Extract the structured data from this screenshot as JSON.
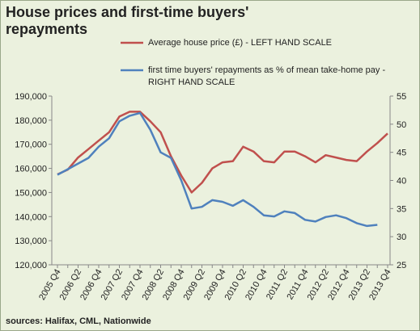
{
  "chart_data": {
    "type": "line",
    "title": "House prices and first-time buyers' repayments",
    "footnote": "sources: Halifax,  CML, Nationwide",
    "categories": [
      "2005 Q4",
      null,
      "2006 Q2",
      null,
      "2006 Q4",
      null,
      "2007 Q2",
      null,
      "2007 Q4",
      null,
      "2008 Q2",
      null,
      "2008 Q4",
      null,
      "2009 Q2",
      null,
      "2009 Q4",
      null,
      "2010 Q2",
      null,
      "2010 Q4",
      null,
      "2011 Q2",
      null,
      "2011 Q4",
      null,
      "2012 Q2",
      null,
      "2012 Q4",
      null,
      "2013 Q2",
      null,
      "2013 Q4"
    ],
    "series": [
      {
        "name": "Average house price (£) - LEFT HAND SCALE",
        "color": "#c0504d",
        "axis": "y",
        "values": [
          157500,
          159500,
          164500,
          168000,
          171500,
          175000,
          181500,
          183500,
          183500,
          179500,
          175000,
          165000,
          157000,
          150000,
          154000,
          160000,
          162500,
          163000,
          169000,
          167000,
          163000,
          162500,
          167000,
          167000,
          165000,
          162500,
          165500,
          164500,
          163500,
          163000,
          167000,
          170500,
          174500
        ]
      },
      {
        "name": "first time buyers' repayments as % of mean take-home pay - RIGHT HAND SCALE",
        "color": "#4f81bd",
        "axis": "y2",
        "values": [
          41,
          42,
          43,
          44,
          46,
          47.5,
          50.5,
          51.5,
          52,
          49,
          45,
          44,
          40,
          35,
          35.3,
          36.5,
          36.2,
          35.5,
          36.5,
          35.3,
          33.8,
          33.6,
          34.5,
          34.2,
          33,
          32.7,
          33.5,
          33.8,
          33.3,
          32.4,
          31.9,
          32.1,
          null
        ]
      }
    ],
    "ylim": [
      120000,
      190000
    ],
    "yticks": [
      {
        "value": 120000,
        "label": "120,000"
      },
      {
        "value": 130000,
        "label": "130,000"
      },
      {
        "value": 140000,
        "label": "140,000"
      },
      {
        "value": 150000,
        "label": "150,000"
      },
      {
        "value": 160000,
        "label": "160,000"
      },
      {
        "value": 170000,
        "label": "170,000"
      },
      {
        "value": 180000,
        "label": "180,000"
      },
      {
        "value": 190000,
        "label": "190,000"
      }
    ],
    "y2lim": [
      25,
      55
    ],
    "y2ticks": [
      25,
      30,
      35,
      40,
      45,
      50,
      55
    ],
    "grid": false
  }
}
